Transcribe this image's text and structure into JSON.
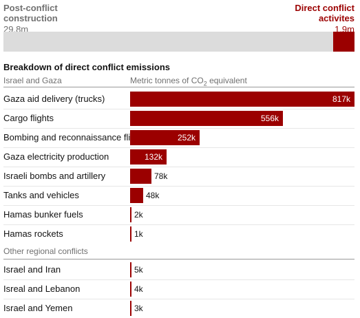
{
  "summary": {
    "left_label": "Post-conflict construction",
    "left_value": "29.8m",
    "right_label": "Direct conflict activites",
    "right_value": "1.9m",
    "stack_values": [
      29.8,
      1.9
    ]
  },
  "breakdown": {
    "title": "Breakdown of direct conflict emissions",
    "group1_label": "Israel and Gaza",
    "unit_prefix": "Metric tonnes of CO",
    "unit_sub": "2",
    "unit_suffix": " equivalent",
    "group2_label": "Other regional conflicts"
  },
  "colors": {
    "bar": "#9b0000",
    "grey": "#dcdcdc"
  },
  "chart_data": {
    "type": "bar",
    "orientation": "horizontal",
    "groups": [
      {
        "name": "Israel and Gaza",
        "items": [
          {
            "label": "Gaza aid delivery (trucks)",
            "value": 817,
            "display": "817k"
          },
          {
            "label": "Cargo flights",
            "value": 556,
            "display": "556k"
          },
          {
            "label": "Bombing and reconnaissance flights",
            "value": 252,
            "display": "252k"
          },
          {
            "label": "Gaza electricity production",
            "value": 132,
            "display": "132k"
          },
          {
            "label": "Israeli bombs and artillery",
            "value": 78,
            "display": "78k"
          },
          {
            "label": "Tanks and vehicles",
            "value": 48,
            "display": "48k"
          },
          {
            "label": "Hamas bunker fuels",
            "value": 2,
            "display": "2k"
          },
          {
            "label": "Hamas rockets",
            "value": 1,
            "display": "1k"
          }
        ]
      },
      {
        "name": "Other regional conflicts",
        "items": [
          {
            "label": "Israel and Iran",
            "value": 5,
            "display": "5k"
          },
          {
            "label": "Isreal and Lebanon",
            "value": 4,
            "display": "4k"
          },
          {
            "label": "Israel and Yemen",
            "value": 3,
            "display": "3k"
          }
        ]
      }
    ],
    "xlim": [
      0,
      817
    ]
  }
}
